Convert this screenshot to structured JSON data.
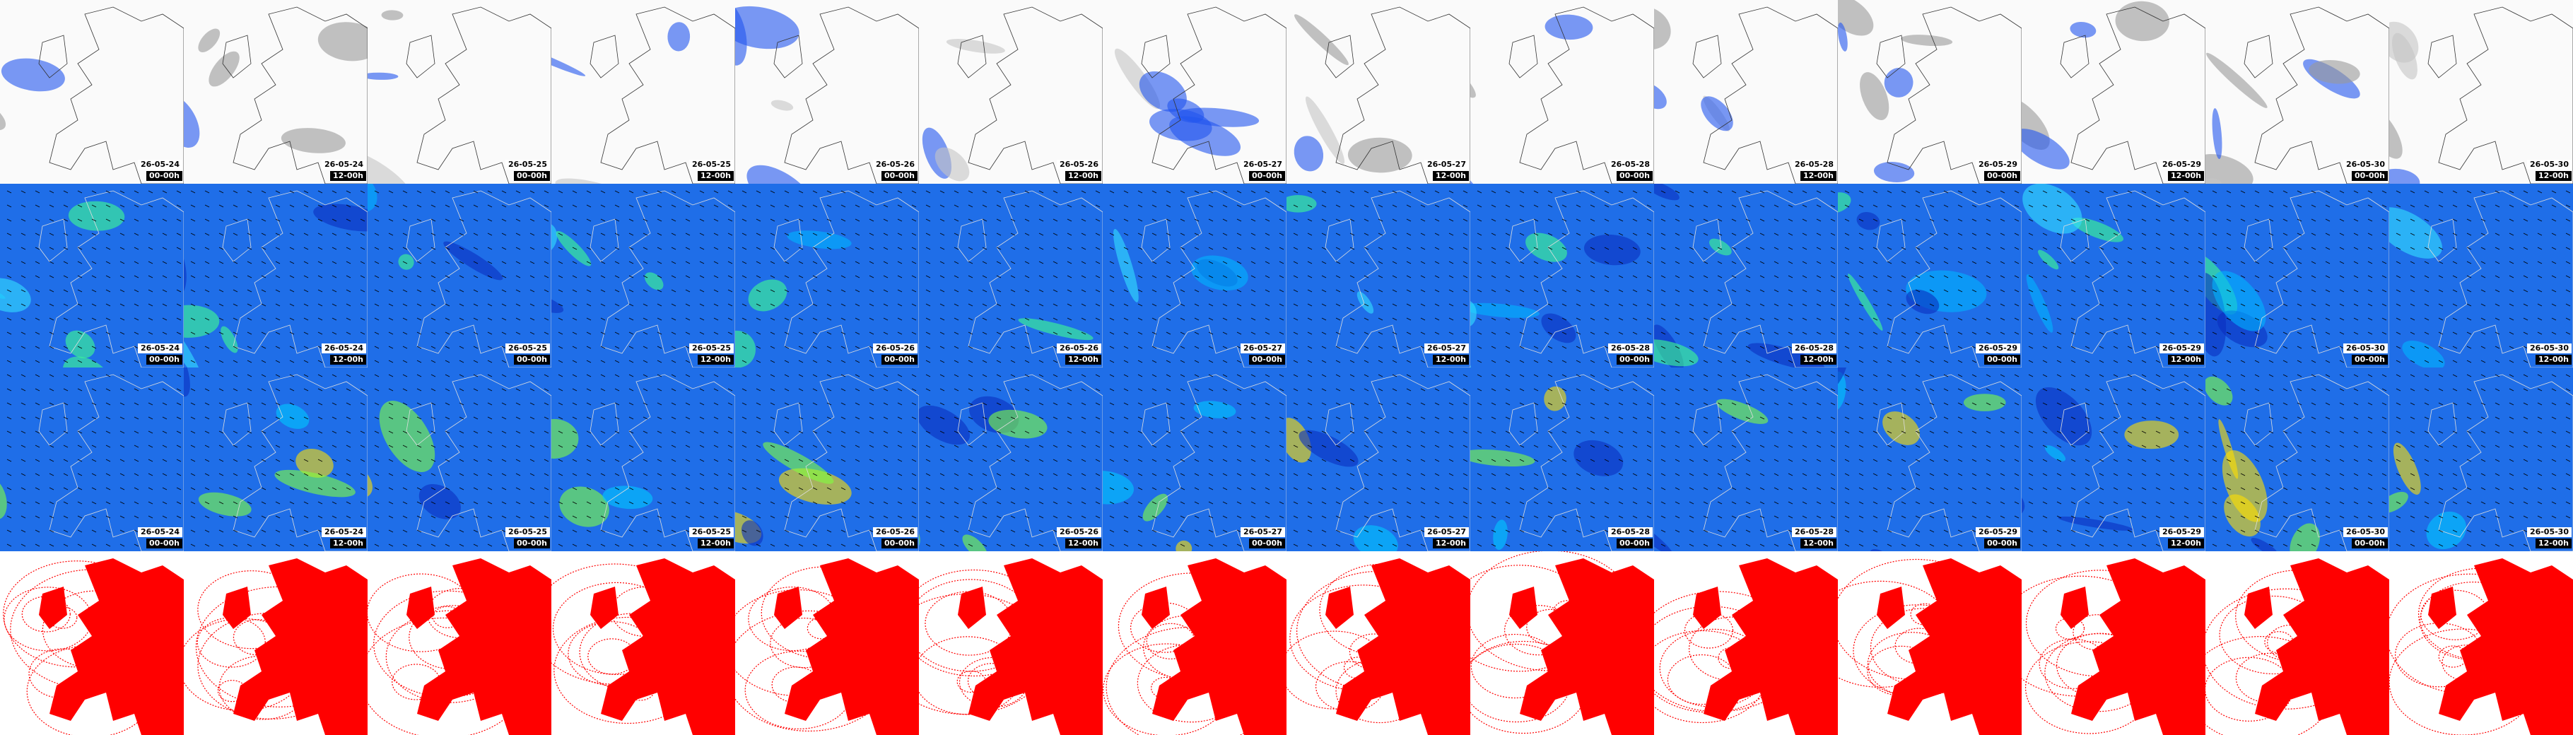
{
  "rows": [
    {
      "tiles": [
        {
          "date": "26-05-24",
          "time": "00-00h"
        },
        {
          "date": "26-05-24",
          "time": "12-00h"
        },
        {
          "date": "26-05-25",
          "time": "00-00h"
        },
        {
          "date": "26-05-25",
          "time": "12-00h"
        },
        {
          "date": "26-05-26",
          "time": "00-00h"
        },
        {
          "date": "26-05-26",
          "time": "12-00h"
        },
        {
          "date": "26-05-27",
          "time": "00-00h"
        },
        {
          "date": "26-05-27",
          "time": "12-00h"
        },
        {
          "date": "26-05-28",
          "time": "00-00h"
        },
        {
          "date": "26-05-28",
          "time": "12-00h"
        },
        {
          "date": "26-05-29",
          "time": "00-00h"
        },
        {
          "date": "26-05-29",
          "time": "12-00h"
        },
        {
          "date": "26-05-30",
          "time": "00-00h"
        },
        {
          "date": "26-05-30",
          "time": "12-00h"
        }
      ]
    },
    {
      "tiles": [
        {
          "date": "26-05-24",
          "time": "00-00h"
        },
        {
          "date": "26-05-24",
          "time": "12-00h"
        },
        {
          "date": "26-05-25",
          "time": "00-00h"
        },
        {
          "date": "26-05-25",
          "time": "12-00h"
        },
        {
          "date": "26-05-26",
          "time": "00-00h"
        },
        {
          "date": "26-05-26",
          "time": "12-00h"
        },
        {
          "date": "26-05-27",
          "time": "00-00h"
        },
        {
          "date": "26-05-27",
          "time": "12-00h"
        },
        {
          "date": "26-05-28",
          "time": "00-00h"
        },
        {
          "date": "26-05-28",
          "time": "12-00h"
        },
        {
          "date": "26-05-29",
          "time": "00-00h"
        },
        {
          "date": "26-05-29",
          "time": "12-00h"
        },
        {
          "date": "26-05-30",
          "time": "00-00h"
        },
        {
          "date": "26-05-30",
          "time": "12-00h"
        }
      ]
    },
    {
      "tiles": [
        {
          "date": "26-05-24",
          "time": "00-00h"
        },
        {
          "date": "26-05-24",
          "time": "12-00h"
        },
        {
          "date": "26-05-25",
          "time": "00-00h"
        },
        {
          "date": "26-05-25",
          "time": "12-00h"
        },
        {
          "date": "26-05-26",
          "time": "00-00h"
        },
        {
          "date": "26-05-26",
          "time": "12-00h"
        },
        {
          "date": "26-05-27",
          "time": "00-00h"
        },
        {
          "date": "26-05-27",
          "time": "12-00h"
        },
        {
          "date": "26-05-28",
          "time": "00-00h"
        },
        {
          "date": "26-05-28",
          "time": "12-00h"
        },
        {
          "date": "26-05-29",
          "time": "00-00h"
        },
        {
          "date": "26-05-29",
          "time": "12-00h"
        },
        {
          "date": "26-05-30",
          "time": "00-00h"
        },
        {
          "date": "26-05-30",
          "time": "12-00h"
        }
      ]
    }
  ]
}
